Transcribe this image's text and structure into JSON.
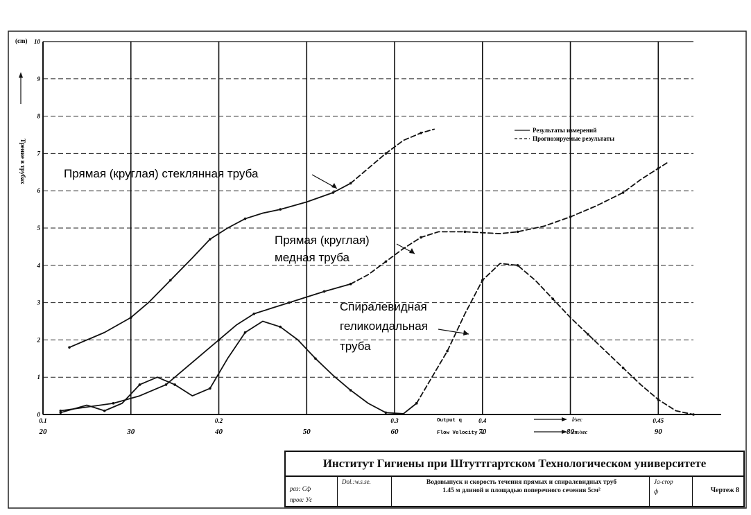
{
  "chart_data": {
    "type": "line",
    "y_unit_label": "(cm)",
    "ylabel": "Трение в трубах",
    "y_ticks": [
      {
        "value": 0,
        "label": "0"
      },
      {
        "value": 1,
        "label": "1"
      },
      {
        "value": 2,
        "label": "2"
      },
      {
        "value": 3,
        "label": "3"
      },
      {
        "value": 4,
        "label": "4"
      },
      {
        "value": 5,
        "label": "5"
      },
      {
        "value": 6,
        "label": "6"
      },
      {
        "value": 7,
        "label": "7"
      },
      {
        "value": 8,
        "label": "8"
      },
      {
        "value": 9,
        "label": "9"
      },
      {
        "value": 10,
        "label": "10"
      }
    ],
    "ylim": [
      0,
      10
    ],
    "x_ticks": [
      {
        "value": 20,
        "top": "0.1",
        "bottom": "20"
      },
      {
        "value": 30,
        "top": "",
        "bottom": "30"
      },
      {
        "value": 40,
        "top": "0.2",
        "bottom": "40"
      },
      {
        "value": 50,
        "top": "",
        "bottom": "50"
      },
      {
        "value": 60,
        "top": "0.3",
        "bottom": "60"
      },
      {
        "value": 70,
        "top": "0.4",
        "bottom": "70"
      },
      {
        "value": 80,
        "top": "",
        "bottom": "80"
      },
      {
        "value": 90,
        "top": "0.45",
        "bottom": "90"
      }
    ],
    "xlim": [
      20,
      94
    ],
    "x_axis_notes": [
      {
        "label": "Output q",
        "unit": "l/sec"
      },
      {
        "label": "Flow Velocity v",
        "unit": "cm/sec"
      }
    ],
    "grid": true,
    "legend": {
      "position": "top-right",
      "entries": [
        {
          "style": "solid",
          "label": "Результаты измерений"
        },
        {
          "style": "dashed",
          "label": "Прогнозируемые результаты"
        }
      ]
    },
    "series": [
      {
        "name": "Прямая (круглая) стеклянная труба",
        "segments": [
          {
            "style": "solid",
            "points": [
              [
                23,
                1.8
              ],
              [
                27,
                2.2
              ],
              [
                30,
                2.6
              ],
              [
                32,
                3.0
              ],
              [
                34.5,
                3.6
              ],
              [
                37,
                4.2
              ],
              [
                39,
                4.7
              ],
              [
                41,
                5.0
              ],
              [
                43,
                5.25
              ],
              [
                45,
                5.4
              ],
              [
                47,
                5.5
              ],
              [
                50,
                5.7
              ],
              [
                53,
                5.95
              ],
              [
                55,
                6.2
              ]
            ]
          },
          {
            "style": "dashed",
            "points": [
              [
                55,
                6.2
              ],
              [
                57,
                6.6
              ],
              [
                59,
                7.0
              ],
              [
                61,
                7.35
              ],
              [
                63,
                7.55
              ],
              [
                64.5,
                7.65
              ]
            ]
          }
        ]
      },
      {
        "name": "Прямая (круглая) медная труба",
        "segments": [
          {
            "style": "solid",
            "points": [
              [
                22,
                0.1
              ],
              [
                25,
                0.2
              ],
              [
                28,
                0.3
              ],
              [
                31,
                0.5
              ],
              [
                34,
                0.8
              ],
              [
                37,
                1.4
              ],
              [
                40,
                2.0
              ],
              [
                42,
                2.4
              ],
              [
                44,
                2.7
              ],
              [
                46,
                2.85
              ],
              [
                48,
                3.0
              ],
              [
                50,
                3.15
              ],
              [
                52,
                3.3
              ],
              [
                55,
                3.5
              ]
            ]
          },
          {
            "style": "dashed",
            "points": [
              [
                55,
                3.5
              ],
              [
                57,
                3.75
              ],
              [
                59,
                4.1
              ],
              [
                61,
                4.45
              ],
              [
                63,
                4.75
              ],
              [
                65,
                4.9
              ],
              [
                68,
                4.9
              ],
              [
                72,
                4.85
              ],
              [
                74,
                4.9
              ],
              [
                77,
                5.05
              ],
              [
                80,
                5.3
              ],
              [
                83,
                5.6
              ],
              [
                86,
                5.95
              ],
              [
                88,
                6.3
              ],
              [
                90,
                6.6
              ],
              [
                91,
                6.75
              ]
            ]
          }
        ]
      },
      {
        "name": "Спиралевидная геликоидальная труба",
        "segments": [
          {
            "style": "solid",
            "points": [
              [
                22,
                0.05
              ],
              [
                25,
                0.25
              ],
              [
                27,
                0.1
              ],
              [
                29,
                0.3
              ],
              [
                31,
                0.8
              ],
              [
                33,
                1.0
              ],
              [
                35,
                0.8
              ],
              [
                37,
                0.5
              ],
              [
                39,
                0.7
              ],
              [
                41,
                1.5
              ],
              [
                43,
                2.2
              ],
              [
                45,
                2.5
              ],
              [
                47,
                2.35
              ],
              [
                49,
                2.0
              ],
              [
                51,
                1.5
              ],
              [
                53,
                1.05
              ],
              [
                55,
                0.65
              ],
              [
                57,
                0.3
              ],
              [
                59,
                0.05
              ],
              [
                61,
                0.02
              ],
              [
                62.5,
                0.3
              ]
            ]
          },
          {
            "style": "dashed",
            "points": [
              [
                62.5,
                0.3
              ],
              [
                64,
                0.9
              ],
              [
                66,
                1.7
              ],
              [
                68,
                2.7
              ],
              [
                70,
                3.6
              ],
              [
                72,
                4.05
              ],
              [
                74,
                4.0
              ],
              [
                76,
                3.6
              ],
              [
                78,
                3.1
              ],
              [
                80,
                2.6
              ],
              [
                82,
                2.15
              ],
              [
                84,
                1.7
              ],
              [
                86,
                1.25
              ],
              [
                88,
                0.8
              ],
              [
                90,
                0.4
              ],
              [
                92,
                0.1
              ],
              [
                94,
                0.0
              ]
            ]
          }
        ]
      }
    ],
    "annotations": [
      {
        "lines": [
          "Прямая (круглая) стеклянная труба"
        ]
      },
      {
        "lines": [
          "Прямая (круглая)",
          "медная труба"
        ]
      },
      {
        "lines": [
          "Спиралевидная",
          "геликоидальная",
          "труба"
        ]
      }
    ]
  },
  "title_block": {
    "institute": "Институт Гигиены при Штуттгартском Технологическом университете",
    "drawn_label": "раз: Сф",
    "checked_label": "пров: Ус",
    "cell2_label": "Dol.:w.s.se.",
    "description_line1": "Водовыпуск и скорость течения прямых и спиралевидных труб",
    "description_line2": "1.45 м длиной и площадью поперечного сечения 5см²",
    "cell4_label": "Ja-crop",
    "cell4_value": "ф",
    "sheet": "Чертеж 8"
  }
}
